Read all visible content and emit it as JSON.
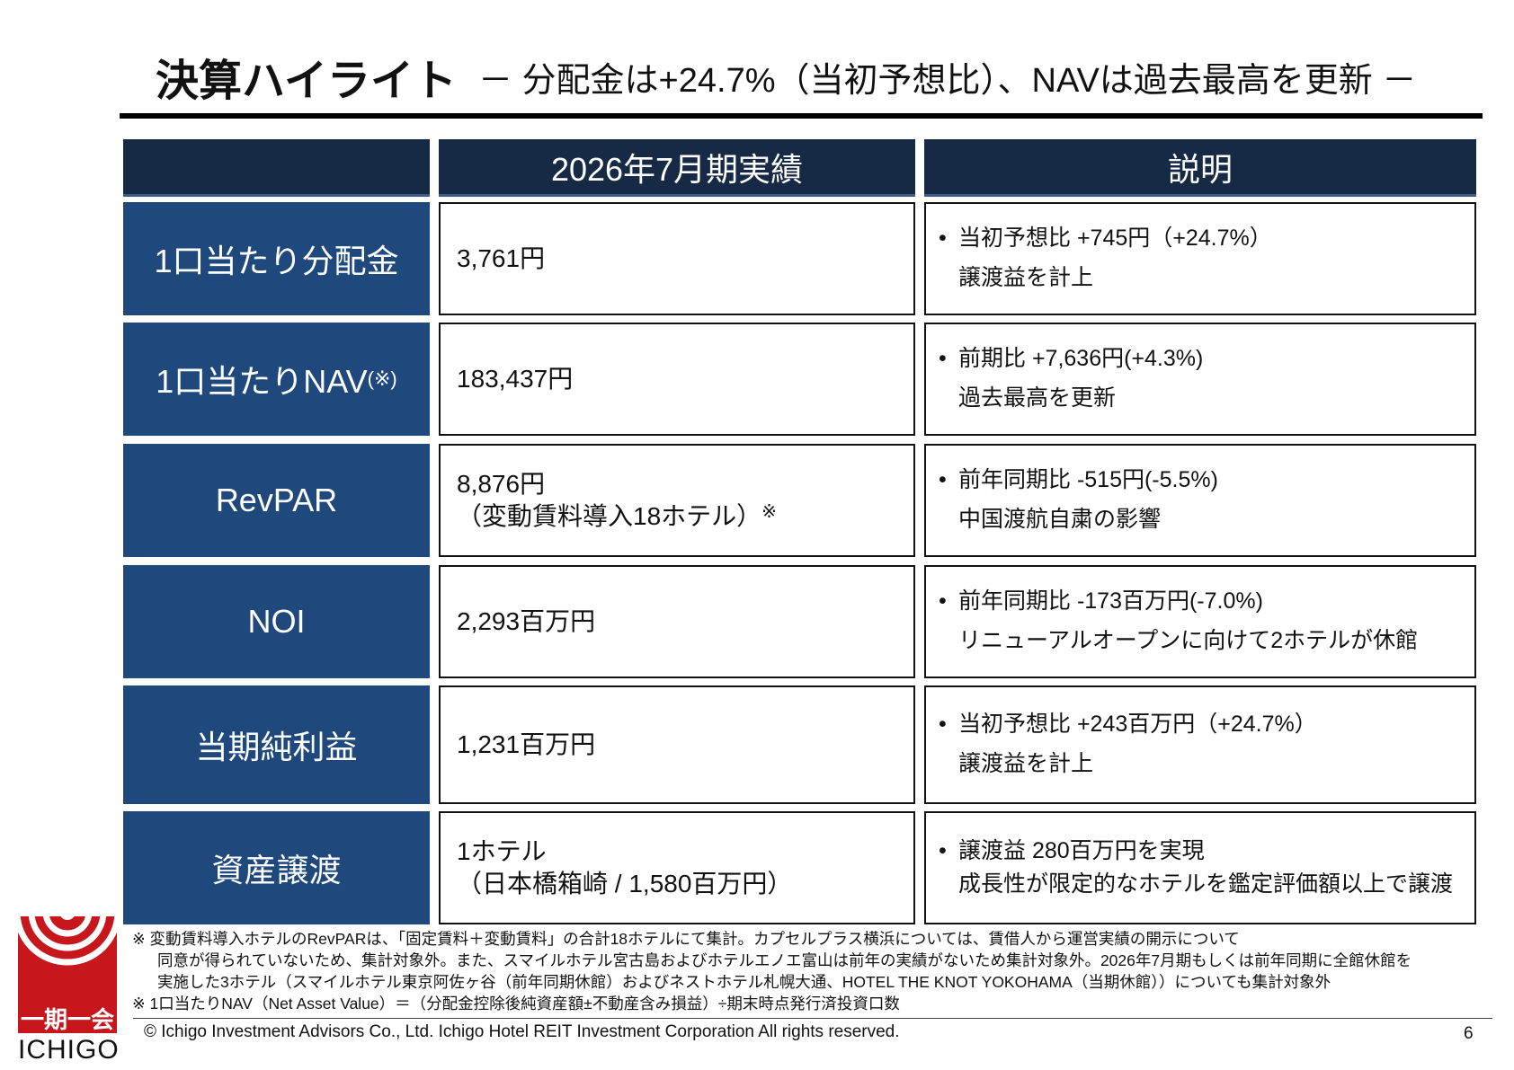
{
  "title": {
    "main": "決算ハイライト",
    "sub": "－ 分配金は+24.7%（当初予想比）、NAVは過去最高を更新 －"
  },
  "table": {
    "headers": {
      "blank": "",
      "results": "2026年7月期実績",
      "explanation": "説明"
    },
    "rows": [
      {
        "label": "1口当たり分配金",
        "label_note": "",
        "value": "3,761円",
        "value2": "",
        "value_note": "",
        "desc1": "当初予想比 +745円（+24.7%）",
        "desc2": "譲渡益を計上"
      },
      {
        "label": "1口当たりNAV",
        "label_note": "(※)",
        "value": "183,437円",
        "value2": "",
        "value_note": "",
        "desc1": "前期比 +7,636円(+4.3%)",
        "desc2": "過去最高を更新"
      },
      {
        "label": "RevPAR",
        "label_note": "",
        "value": "8,876円",
        "value2": "（変動賃料導入18ホテル）",
        "value_note": "※",
        "desc1": "前年同期比 -515円(-5.5%)",
        "desc2": "中国渡航自粛の影響"
      },
      {
        "label": "NOI",
        "label_note": "",
        "value": "2,293百万円",
        "value2": "",
        "value_note": "",
        "desc1": "前年同期比 -173百万円(-7.0%)",
        "desc2": "リニューアルオープンに向けて2ホテルが休館"
      },
      {
        "label": "当期純利益",
        "label_note": "",
        "value": "1,231百万円",
        "value2": "",
        "value_note": "",
        "desc1": "当初予想比 +243百万円（+24.7%）",
        "desc2": "譲渡益を計上"
      },
      {
        "label": "資産譲渡",
        "label_note": "",
        "value": "1ホテル",
        "value2": "（日本橋箱崎 / 1,580百万円）",
        "value_note": "",
        "desc1": "譲渡益 280百万円を実現",
        "desc2": "成長性が限定的なホテルを鑑定評価額以上で譲渡"
      }
    ],
    "bullet": "•"
  },
  "notes": {
    "line1": "※ 変動賃料導入ホテルのRevPARは、「固定賃料＋変動賃料」の合計18ホテルにて集計。カプセルプラス横浜については、賃借人から運営実績の開示について",
    "line2": "同意が得られていないため、集計対象外。また、スマイルホテル宮古島およびホテルエノエ富山は前年の実績がないため集計対象外。2026年7月期もしくは前年同期に全館休館を",
    "line3": "実施した3ホテル（スマイルホテル東京阿佐ヶ谷（前年同期休館）およびネストホテル札幌大通、HOTEL THE KNOT YOKOHAMA（当期休館））についても集計対象外",
    "line4": "※ 1口当たりNAV（Net Asset Value）＝（分配金控除後純資産額±不動産含み損益）÷期末時点発行済投資口数"
  },
  "logo": {
    "kanji": "一期一会",
    "name": "ICHIGO",
    "color": "#c8161d"
  },
  "footer": {
    "copyright": "© Ichigo Investment Advisors Co., Ltd.   Ichigo Hotel REIT Investment Corporation  All rights reserved.",
    "page": "6"
  },
  "colors": {
    "header_bg": "#162a45",
    "label_bg": "#1f497d",
    "accent": "#c8161d"
  }
}
